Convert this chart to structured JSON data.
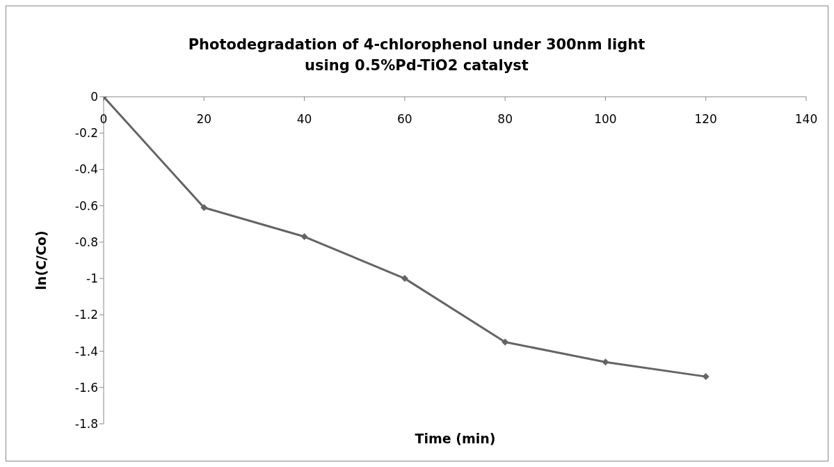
{
  "chart_data": {
    "type": "line",
    "title": "Photodegradation of 4-chlorophenol under 300nm light using 0.5%Pd-TiO2 catalyst",
    "xlabel": "Time (min)",
    "ylabel": "ln(C/Co)",
    "x": [
      0,
      20,
      40,
      60,
      80,
      100,
      120
    ],
    "series": [
      {
        "color": "#646464",
        "values": [
          0,
          -0.61,
          -0.77,
          -1.0,
          -1.35,
          -1.46,
          -1.54
        ]
      }
    ],
    "xlim": [
      0,
      140
    ],
    "xticks": [
      0,
      20,
      40,
      60,
      80,
      100,
      120,
      140
    ],
    "ylim": [
      -1.8,
      0
    ],
    "yticks": [
      -1.8,
      -1.6,
      -1.4,
      -1.2,
      -1,
      -0.8,
      -0.6,
      -0.4,
      -0.2,
      0
    ],
    "grid": false,
    "legend": false,
    "marker": "diamond",
    "line_style": "solid"
  }
}
